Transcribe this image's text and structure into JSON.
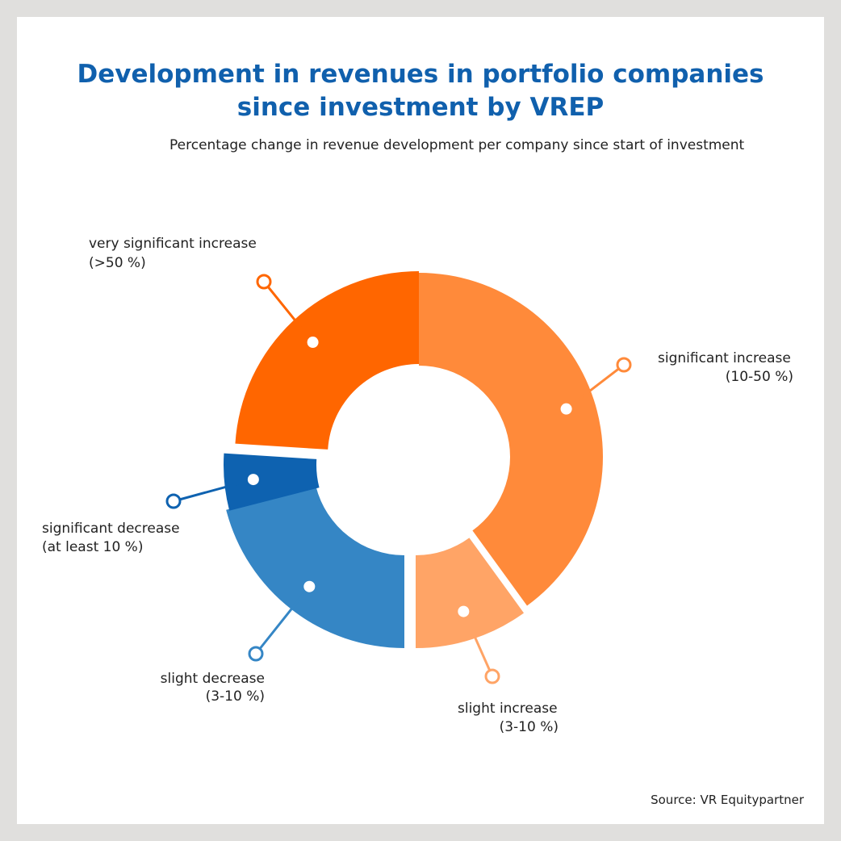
{
  "chart_data": {
    "type": "pie",
    "variant": "donut",
    "title_lines": [
      "Development in revenues in portfolio companies",
      "since investment by VREP"
    ],
    "subtitle": "Percentage change in revenue development per company since start of investment",
    "source": "Source: VR Equitypartner",
    "slices": [
      {
        "name": "significant increase",
        "range": "(10-50 %)",
        "value": 40,
        "color": "#ff8a3a"
      },
      {
        "name": "slight increase",
        "range": "(3-10 %)",
        "value": 10,
        "color": "#ffa466"
      },
      {
        "name": "slight decrease",
        "range": "(3-10 %)",
        "value": 21,
        "color": "#3586c5"
      },
      {
        "name": "significant decrease",
        "range": "(at least 10 %)",
        "value": 5,
        "color": "#0e62b0"
      },
      {
        "name": "very significant increase",
        "range": "(>50 %)",
        "value": 24,
        "color": "#ff6600"
      }
    ]
  }
}
